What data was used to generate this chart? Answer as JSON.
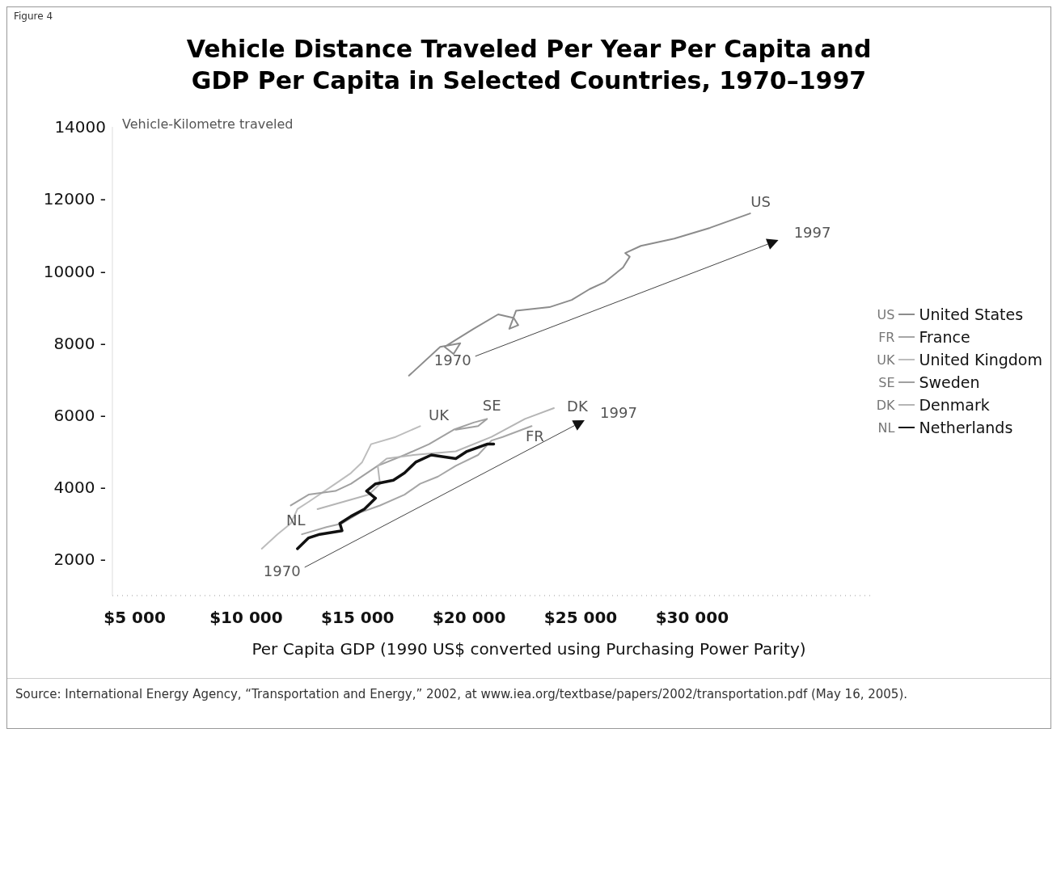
{
  "chart_data": {
    "type": "line",
    "title": "Vehicle Distance Traveled Per Year Per Capita and GDP Per Capita in Selected Countries, 1970–1997",
    "ylabel": "Vehicle-Kilometre traveled",
    "xlabel": "Per Capita GDP (1990 US$ converted using Purchasing Power Parity)",
    "xlim": [
      4000,
      38000
    ],
    "ylim": [
      1000,
      14000
    ],
    "xticks": [
      {
        "value": 5000,
        "label": "$5 000"
      },
      {
        "value": 10000,
        "label": "$10 000"
      },
      {
        "value": 15000,
        "label": "$15 000"
      },
      {
        "value": 20000,
        "label": "$20 000"
      },
      {
        "value": 25000,
        "label": "$25 000"
      },
      {
        "value": 30000,
        "label": "$30 000"
      }
    ],
    "yticks": [
      {
        "value": 2000,
        "label": "2000 -"
      },
      {
        "value": 4000,
        "label": "4000 -"
      },
      {
        "value": 6000,
        "label": "6000 -"
      },
      {
        "value": 8000,
        "label": "8000 -"
      },
      {
        "value": 10000,
        "label": "10000 -"
      },
      {
        "value": 12000,
        "label": "12000 -"
      },
      14000
    ],
    "legend": "right",
    "series": [
      {
        "name": "United States",
        "color": "#8c8c8c",
        "x": [
          17300,
          18700,
          19600,
          19300,
          18900,
          20200,
          21300,
          22000,
          22200,
          21800,
          22100,
          23600,
          24600,
          25400,
          26100,
          26900,
          27200,
          27000,
          27700,
          29200,
          30800,
          32600
        ],
        "values": [
          7100,
          7900,
          8000,
          7700,
          7900,
          8400,
          8800,
          8700,
          8500,
          8400,
          8900,
          9000,
          9200,
          9500,
          9700,
          10100,
          10400,
          10500,
          10700,
          10900,
          11200,
          11600
        ]
      },
      {
        "name": "France",
        "color": "#a6a6a6",
        "x": [
          12500,
          13600,
          14300,
          15100,
          16000,
          17100,
          17800,
          18600,
          19400,
          20400,
          21000,
          21500,
          22800
        ],
        "values": [
          2700,
          2900,
          3000,
          3300,
          3500,
          3800,
          4100,
          4300,
          4600,
          4900,
          5300,
          5400,
          5700
        ]
      },
      {
        "name": "United Kingdom",
        "color": "#bdbdbd",
        "x": [
          10700,
          11400,
          12000,
          12300,
          12800,
          14000,
          14700,
          15200,
          15600,
          16700,
          17800
        ],
        "values": [
          2300,
          2700,
          3000,
          3400,
          3600,
          4100,
          4400,
          4700,
          5200,
          5400,
          5700
        ]
      },
      {
        "name": "Sweden",
        "color": "#a0a0a0",
        "x": [
          12000,
          12800,
          14000,
          14700,
          15900,
          17100,
          18200,
          19300,
          20200,
          20800,
          20400,
          19400
        ],
        "values": [
          3500,
          3800,
          3900,
          4100,
          4600,
          4900,
          5200,
          5600,
          5800,
          5900,
          5700,
          5600
        ]
      },
      {
        "name": "Denmark",
        "color": "#b5b5b5",
        "x": [
          13200,
          15500,
          16000,
          15900,
          16300,
          17500,
          19400,
          21000,
          22500,
          23800
        ],
        "values": [
          3400,
          3800,
          4100,
          4600,
          4800,
          4900,
          5000,
          5400,
          5900,
          6200
        ]
      },
      {
        "name": "Netherlands",
        "color": "#111111",
        "x": [
          12300,
          12800,
          13300,
          14300,
          14200,
          14700,
          15300,
          15800,
          15400,
          15800,
          16600,
          17100,
          17600,
          18300,
          19400,
          19900,
          20800,
          21100
        ],
        "values": [
          2300,
          2600,
          2700,
          2800,
          3000,
          3200,
          3400,
          3700,
          3900,
          4100,
          4200,
          4400,
          4700,
          4900,
          4800,
          5000,
          5200,
          5200
        ]
      }
    ],
    "annotations": [
      "US",
      "FR",
      "UK",
      "SE",
      "DK",
      "NL",
      "1970",
      "1997",
      "1970",
      "1997",
      "Figure 4",
      "Source: International Energy Agency, “Transportation and Energy,” 2002, at www.iea.org/textbase/papers/2002/transportation.pdf (May 16, 2005)."
    ]
  }
}
